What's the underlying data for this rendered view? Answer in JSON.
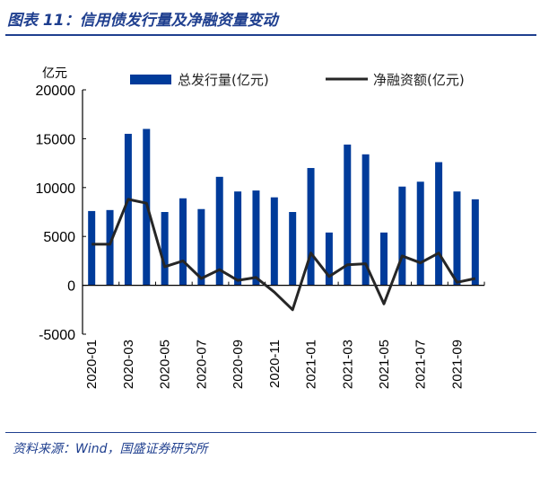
{
  "title": "图表 11：信用债发行量及净融资量变动",
  "source": "资料来源：Wind，国盛证券研究所",
  "chart_data": {
    "type": "bar+line",
    "ylabel": "亿元",
    "ylim": [
      -5000,
      20000
    ],
    "yticks": [
      -5000,
      0,
      5000,
      10000,
      15000,
      20000
    ],
    "categories": [
      "2020-01",
      "2020-02",
      "2020-03",
      "2020-04",
      "2020-05",
      "2020-06",
      "2020-07",
      "2020-08",
      "2020-09",
      "2020-10",
      "2020-11",
      "2020-12",
      "2021-01",
      "2021-02",
      "2021-03",
      "2021-04",
      "2021-05",
      "2021-06",
      "2021-07",
      "2021-08",
      "2021-09",
      "2021-10"
    ],
    "xtick_labels": [
      "2020-01",
      "2020-03",
      "2020-05",
      "2020-07",
      "2020-09",
      "2020-11",
      "2021-01",
      "2021-03",
      "2021-05",
      "2021-07",
      "2021-09"
    ],
    "legend_position": "top-right",
    "series": [
      {
        "name": "总发行量(亿元)",
        "type": "bar",
        "color": "#003b9a",
        "values": [
          7600,
          7700,
          15500,
          16000,
          7500,
          8900,
          7800,
          11100,
          9600,
          9700,
          9000,
          7500,
          12000,
          5400,
          14400,
          13400,
          5400,
          10100,
          10600,
          12600,
          9600,
          8800
        ]
      },
      {
        "name": "净融资额(亿元)",
        "type": "line",
        "color": "#262626",
        "values": [
          4200,
          4200,
          8800,
          8400,
          1900,
          2500,
          700,
          1600,
          500,
          800,
          -700,
          -2500,
          3300,
          900,
          2100,
          2200,
          -1900,
          3000,
          2300,
          3300,
          300,
          700
        ]
      }
    ]
  }
}
